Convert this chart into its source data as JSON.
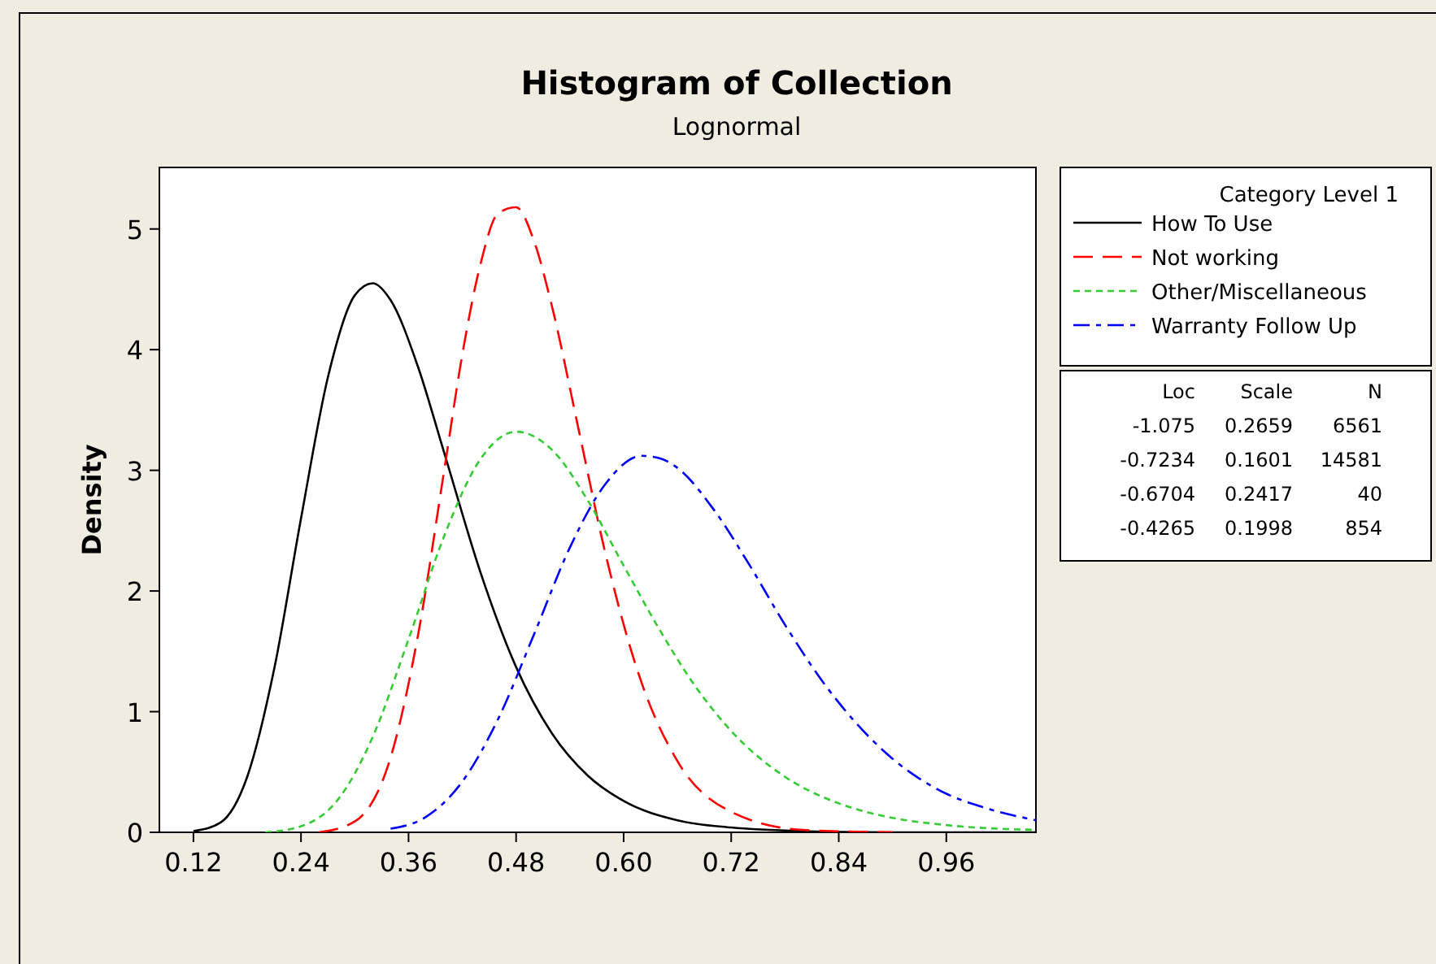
{
  "chart_data": {
    "type": "line",
    "title": "Histogram of Collection",
    "subtitle": "Lognormal",
    "ylabel": "Density",
    "legend_title": "Category Level 1",
    "legend": "right",
    "grid": false,
    "xlim": [
      0.082,
      1.06
    ],
    "xticks": [
      0.12,
      0.24,
      0.36,
      0.48,
      {
        "value": 0.6,
        "label": "0.60"
      },
      0.72,
      0.84,
      0.96
    ],
    "ylim": [
      0,
      5.51
    ],
    "yticks": [
      0,
      1,
      2,
      3,
      4,
      5
    ],
    "series": [
      {
        "name": "How To Use",
        "color": "#000000",
        "line_style": "solid",
        "x": [
          0.12,
          0.15,
          0.18,
          0.21,
          0.24,
          0.27,
          0.3,
          0.32,
          0.34,
          0.37,
          0.4,
          0.44,
          0.48,
          0.52,
          0.56,
          0.6,
          0.66,
          0.72,
          0.8,
          0.9,
          1.06
        ],
        "values": [
          0.01,
          0.08,
          0.46,
          1.35,
          2.6,
          3.77,
          4.45,
          4.55,
          4.41,
          3.87,
          3.14,
          2.16,
          1.37,
          0.82,
          0.47,
          0.26,
          0.1,
          0.04,
          0.01,
          0,
          0
        ]
      },
      {
        "name": "Not working",
        "color": "#ff0000",
        "line_style": "dashed",
        "x": [
          0.26,
          0.3,
          0.34,
          0.37,
          0.4,
          0.42,
          0.44,
          0.46,
          0.48,
          0.5,
          0.52,
          0.55,
          0.58,
          0.62,
          0.66,
          0.72,
          0.8,
          0.9
        ],
        "values": [
          0,
          0.09,
          0.62,
          1.61,
          3.01,
          3.96,
          4.7,
          5.13,
          5.18,
          4.9,
          4.36,
          3.33,
          2.3,
          1.24,
          0.59,
          0.17,
          0.02,
          0
        ]
      },
      {
        "name": "Other/Miscellaneous",
        "color": "#33cc33",
        "line_style": "dotted",
        "x": [
          0.2,
          0.24,
          0.28,
          0.32,
          0.36,
          0.4,
          0.44,
          0.48,
          0.52,
          0.56,
          0.6,
          0.64,
          0.68,
          0.72,
          0.78,
          0.84,
          0.9,
          0.96,
          1.06
        ],
        "values": [
          0,
          0.05,
          0.26,
          0.79,
          1.6,
          2.46,
          3.09,
          3.32,
          3.17,
          2.75,
          2.21,
          1.68,
          1.21,
          0.84,
          0.46,
          0.24,
          0.12,
          0.06,
          0.02
        ]
      },
      {
        "name": "Warranty Follow Up",
        "color": "#0000ff",
        "line_style": "dashdot",
        "x": [
          0.34,
          0.38,
          0.42,
          0.46,
          0.5,
          0.54,
          0.58,
          0.62,
          0.64,
          0.66,
          0.7,
          0.74,
          0.78,
          0.82,
          0.86,
          0.9,
          0.96,
          1,
          1.06
        ],
        "values": [
          0.03,
          0.13,
          0.42,
          0.94,
          1.64,
          2.36,
          2.89,
          3.12,
          3.1,
          3.02,
          2.68,
          2.22,
          1.72,
          1.27,
          0.9,
          0.61,
          0.32,
          0.21,
          0.1
        ]
      }
    ],
    "annotations": [
      "Loc",
      "Scale",
      "N",
      "-1.075",
      "0.2659",
      "6561",
      "-0.7234",
      "0.1601",
      "14581",
      "-0.6704",
      "0.2417",
      "40",
      "-0.4265",
      "0.1998",
      "854"
    ]
  }
}
